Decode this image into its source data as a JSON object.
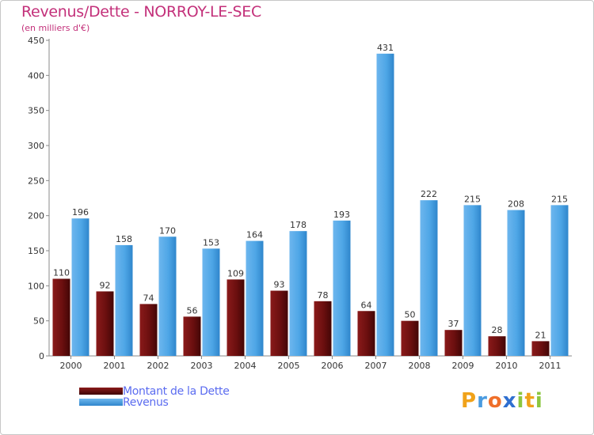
{
  "title": "Revenus/Dette - NORROY-LE-SEC",
  "subtitle": "(en milliers d'€)",
  "logo_text": "Proxiti",
  "colors": {
    "title": "#c3307a",
    "dette": "#6b0f0f",
    "revenus": "#4ea6e6",
    "legend_text": "#5b6cf0"
  },
  "legend": [
    {
      "label": "Montant de la Dette",
      "color": "#6b0f0f"
    },
    {
      "label": "Revenus",
      "color": "#4ea6e6"
    }
  ],
  "chart_data": {
    "type": "bar",
    "title": "Revenus/Dette - NORROY-LE-SEC",
    "subtitle": "(en milliers d'€)",
    "categories": [
      "2000",
      "2001",
      "2002",
      "2003",
      "2004",
      "2005",
      "2006",
      "2007",
      "2008",
      "2009",
      "2010",
      "2011"
    ],
    "series": [
      {
        "name": "Montant de la Dette",
        "color": "#6b0f0f",
        "values": [
          110,
          92,
          74,
          56,
          109,
          93,
          78,
          64,
          50,
          37,
          28,
          21
        ]
      },
      {
        "name": "Revenus",
        "color": "#4ea6e6",
        "values": [
          196,
          158,
          170,
          153,
          164,
          178,
          193,
          431,
          222,
          215,
          208,
          215
        ]
      }
    ],
    "ylim": [
      0,
      450
    ],
    "yticks": [
      0,
      50,
      100,
      150,
      200,
      250,
      300,
      350,
      400,
      450
    ],
    "grid": false,
    "legend_position": "bottom-left"
  }
}
